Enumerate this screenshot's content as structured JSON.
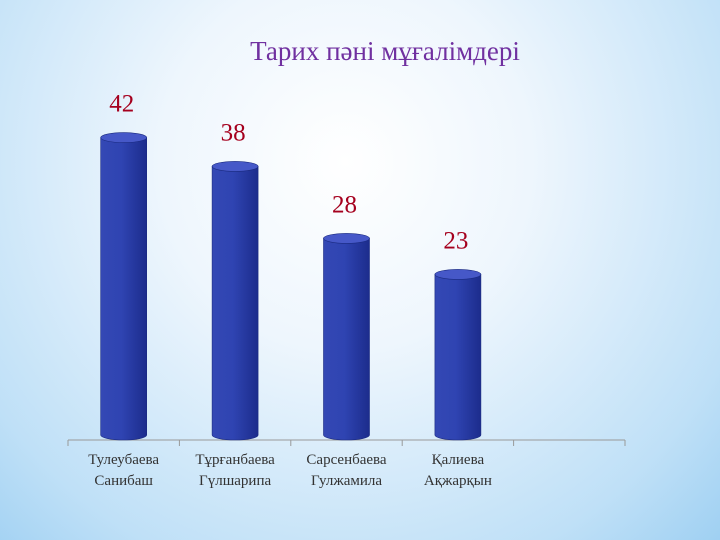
{
  "chart_data": {
    "type": "bar",
    "title": "Тарих  пәні мұғалімдері",
    "categories": [
      "Тулеубаева Санибаш",
      "Тұрғанбаева Гүлшарипа",
      "Сарсенбаева Гулжамила",
      "Қалиева Ақжарқын",
      null
    ],
    "values": [
      42,
      38,
      28,
      23,
      null
    ],
    "color": "#2b3fb0"
  }
}
